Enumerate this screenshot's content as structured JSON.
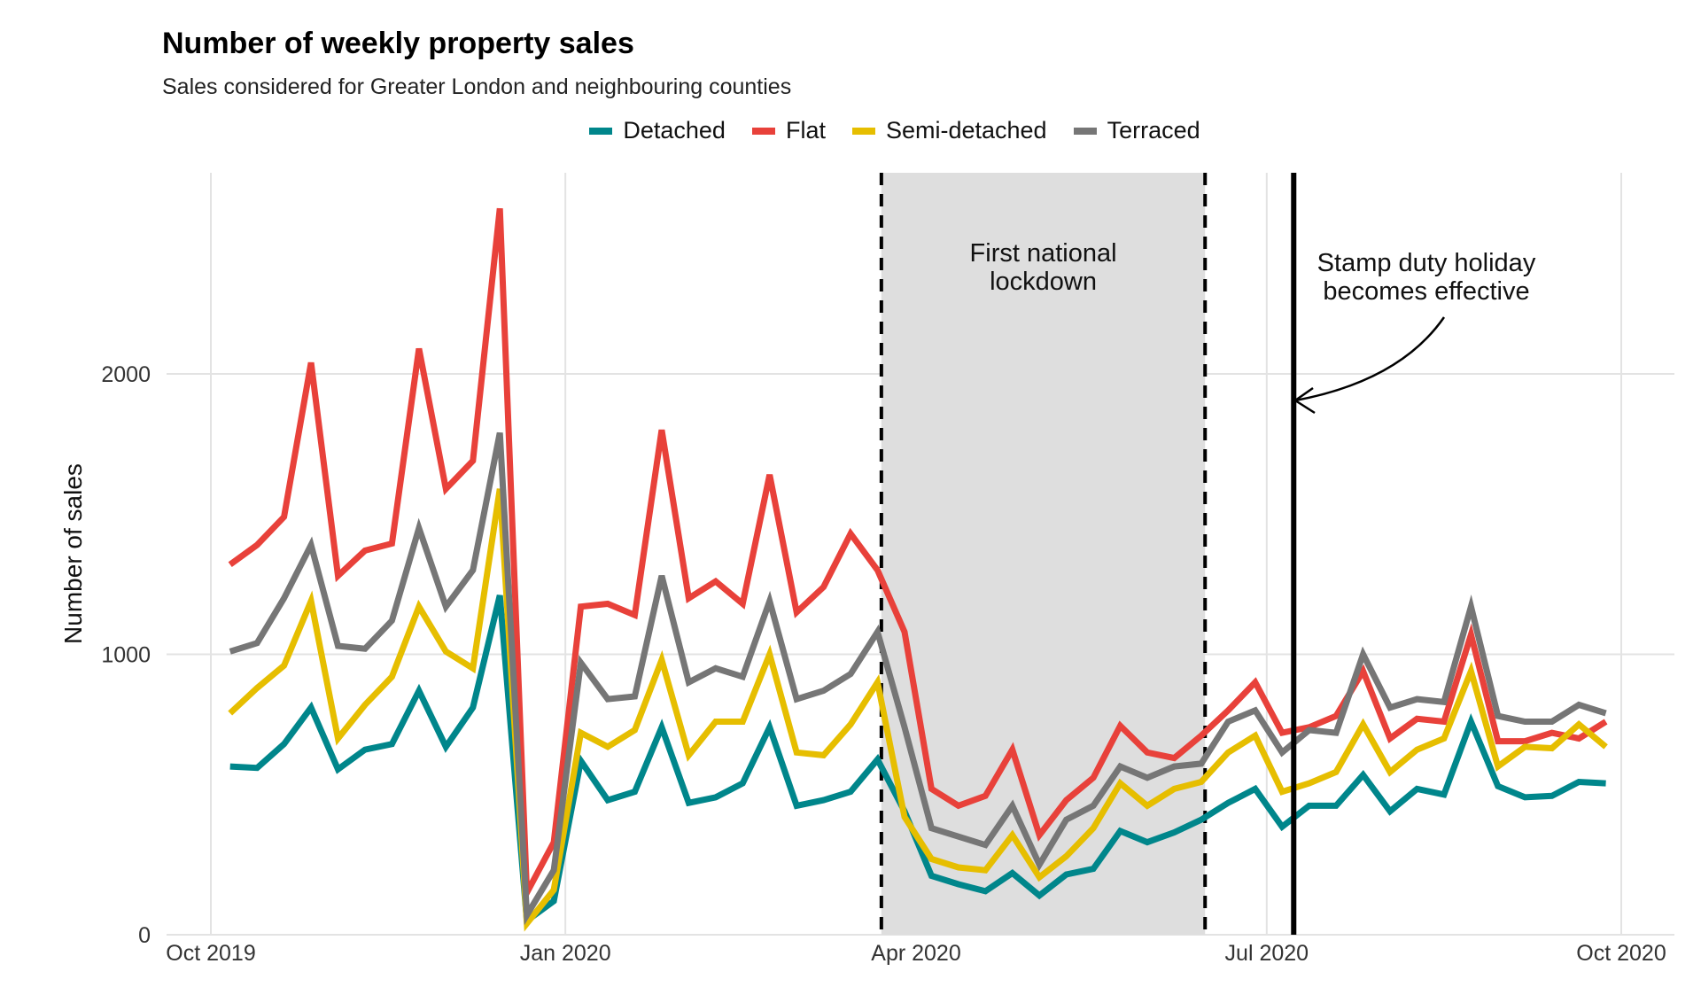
{
  "chart_data": {
    "type": "line",
    "title": "Number of weekly property sales",
    "subtitle": "Sales considered for Greater London and neighbouring counties",
    "xlabel": "",
    "ylabel": "Number of sales",
    "ylim": [
      0,
      2650
    ],
    "x_ticks": [
      "Oct 2019",
      "Jan 2020",
      "Apr 2020",
      "Jul 2020",
      "Oct 2020"
    ],
    "y_ticks": [
      0,
      1000,
      2000
    ],
    "grid": true,
    "legend_position": "top",
    "x": [
      "2019-10-06",
      "2019-10-13",
      "2019-10-20",
      "2019-10-27",
      "2019-11-03",
      "2019-11-10",
      "2019-11-17",
      "2019-11-24",
      "2019-12-01",
      "2019-12-08",
      "2019-12-15",
      "2019-12-22",
      "2019-12-29",
      "2020-01-05",
      "2020-01-12",
      "2020-01-19",
      "2020-01-26",
      "2020-02-02",
      "2020-02-09",
      "2020-02-16",
      "2020-02-23",
      "2020-03-01",
      "2020-03-08",
      "2020-03-15",
      "2020-03-22",
      "2020-03-29",
      "2020-04-05",
      "2020-04-12",
      "2020-04-19",
      "2020-04-26",
      "2020-05-03",
      "2020-05-10",
      "2020-05-17",
      "2020-05-24",
      "2020-05-31",
      "2020-06-07",
      "2020-06-14",
      "2020-06-21",
      "2020-06-28",
      "2020-07-05",
      "2020-07-12",
      "2020-07-19",
      "2020-07-26",
      "2020-08-02",
      "2020-08-09",
      "2020-08-16",
      "2020-08-23",
      "2020-08-30",
      "2020-09-06",
      "2020-09-13",
      "2020-09-20",
      "2020-09-27"
    ],
    "series": [
      {
        "name": "Detached",
        "color": "#00868B",
        "values": [
          600,
          595,
          680,
          810,
          590,
          660,
          680,
          870,
          670,
          810,
          1210,
          50,
          120,
          620,
          480,
          510,
          740,
          470,
          490,
          540,
          740,
          460,
          480,
          510,
          625,
          440,
          210,
          180,
          155,
          220,
          140,
          215,
          235,
          370,
          330,
          365,
          410,
          470,
          520,
          385,
          460,
          460,
          570,
          440,
          520,
          500,
          760,
          530,
          490,
          495,
          545,
          540
        ]
      },
      {
        "name": "Flat",
        "color": "#E8413A",
        "values": [
          1320,
          1390,
          1490,
          2040,
          1280,
          1370,
          1395,
          2090,
          1590,
          1690,
          2590,
          150,
          330,
          1170,
          1180,
          1140,
          1800,
          1200,
          1260,
          1180,
          1640,
          1150,
          1240,
          1430,
          1300,
          1080,
          520,
          460,
          495,
          660,
          355,
          480,
          560,
          745,
          650,
          630,
          710,
          800,
          900,
          720,
          740,
          780,
          940,
          700,
          770,
          760,
          1070,
          690,
          690,
          720,
          700,
          760
        ]
      },
      {
        "name": "Semi-detached",
        "color": "#E6BE00",
        "values": [
          790,
          880,
          960,
          1190,
          700,
          820,
          920,
          1170,
          1010,
          950,
          1590,
          40,
          160,
          720,
          670,
          730,
          980,
          640,
          760,
          760,
          1000,
          650,
          640,
          750,
          900,
          420,
          270,
          240,
          230,
          355,
          205,
          280,
          380,
          540,
          460,
          520,
          545,
          650,
          710,
          510,
          540,
          580,
          750,
          580,
          660,
          700,
          940,
          600,
          670,
          665,
          750,
          670
        ]
      },
      {
        "name": "Terraced",
        "color": "#767676",
        "values": [
          1010,
          1040,
          1200,
          1390,
          1030,
          1020,
          1120,
          1450,
          1170,
          1300,
          1790,
          70,
          230,
          970,
          840,
          850,
          1280,
          900,
          950,
          920,
          1190,
          840,
          870,
          930,
          1080,
          740,
          380,
          350,
          320,
          460,
          250,
          410,
          460,
          600,
          560,
          600,
          610,
          760,
          800,
          650,
          730,
          720,
          1000,
          810,
          840,
          830,
          1170,
          780,
          760,
          760,
          820,
          790
        ]
      }
    ],
    "annotations": {
      "lockdown_label": "First national lockdown",
      "lockdown_start": "2020-03-23",
      "lockdown_end": "2020-06-15",
      "stamp_duty_label": "Stamp duty holiday becomes effective",
      "stamp_duty_date": "2020-07-08"
    }
  }
}
